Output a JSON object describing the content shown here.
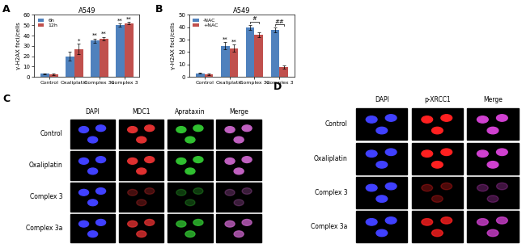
{
  "chart_data": [
    {
      "type": "bar",
      "panel": "A",
      "title": "A549",
      "y_label": "γ-H2AX foci/cells",
      "categories": [
        "Control",
        "Oxaliplatin",
        "Complex 3a",
        "Complex 3"
      ],
      "series": [
        {
          "name": "6h",
          "color": "#4f81bd",
          "values": [
            3,
            20,
            35,
            50
          ],
          "errors": [
            0.5,
            4,
            2,
            1.5
          ]
        },
        {
          "name": "12h",
          "color": "#c0504d",
          "values": [
            2.5,
            27,
            37,
            52
          ],
          "errors": [
            0.5,
            5,
            1.5,
            1
          ]
        }
      ],
      "annotations": [
        {
          "category": "Oxaliplatin",
          "series": "12h",
          "text": "*"
        },
        {
          "category": "Complex 3a",
          "series": "6h",
          "text": "**"
        },
        {
          "category": "Complex 3a",
          "series": "12h",
          "text": "**"
        },
        {
          "category": "Complex 3",
          "series": "6h",
          "text": "**"
        },
        {
          "category": "Complex 3",
          "series": "12h",
          "text": "**"
        }
      ],
      "ylim": [
        0,
        60
      ],
      "yticks": [
        0,
        10,
        20,
        30,
        40,
        50,
        60
      ],
      "grid": false,
      "legend": "upper left"
    },
    {
      "type": "bar",
      "panel": "B",
      "title": "A549",
      "y_label": "γ-H2AX foci/cells",
      "categories": [
        "Control",
        "Oxaliplatin",
        "Complex 3a",
        "Complex 3"
      ],
      "series": [
        {
          "name": "-NAC",
          "color": "#4f81bd",
          "values": [
            3,
            25,
            40,
            38
          ],
          "errors": [
            0.5,
            3,
            2,
            2
          ]
        },
        {
          "name": "+NAC",
          "color": "#c0504d",
          "values": [
            2,
            23,
            34,
            8
          ],
          "errors": [
            0.5,
            3,
            2,
            1.5
          ]
        }
      ],
      "annotations": [
        {
          "category": "Oxaliplatin",
          "series": "-NAC",
          "text": "**"
        },
        {
          "category": "Oxaliplatin",
          "series": "+NAC",
          "text": "**"
        }
      ],
      "brackets": [
        {
          "category": "Complex 3a",
          "text": "#"
        },
        {
          "category": "Complex 3",
          "text": "##"
        }
      ],
      "ylim": [
        0,
        50
      ],
      "yticks": [
        0,
        10,
        20,
        30,
        40,
        50
      ],
      "grid": false,
      "legend": "upper left"
    }
  ],
  "image_panels": [
    {
      "panel": "C",
      "columns": [
        {
          "name": "DAPI",
          "color": "#4040ff"
        },
        {
          "name": "MDC1",
          "color": "#e03030"
        },
        {
          "name": "Aprataxin",
          "color": "#30c030"
        },
        {
          "name": "Merge",
          "color": "#c060c0"
        }
      ],
      "rows": [
        "Control",
        "Oxaliplatin",
        "Complex 3",
        "Complex 3a"
      ]
    },
    {
      "panel": "D",
      "columns": [
        {
          "name": "DAPI",
          "color": "#4040ff"
        },
        {
          "name": "p-XRCC1",
          "color": "#ff2020"
        },
        {
          "name": "Merge",
          "color": "#d040d0"
        }
      ],
      "rows": [
        "Control",
        "Oxaliplatin",
        "Complex 3",
        "Complex 3a"
      ]
    }
  ]
}
